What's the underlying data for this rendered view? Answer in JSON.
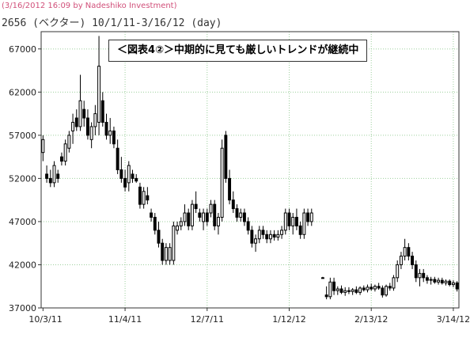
{
  "header": {
    "stamp": "(3/16/2012 16:09 by Nadeshiko Investment)",
    "subtitle": "2656 (ベクター) 10/1/11-3/16/12 (day)"
  },
  "chart_data": {
    "type": "candlestick",
    "title": "＜図表4②＞中期的に見ても厳しいトレンドが継続中",
    "xlabel": "",
    "ylabel": "",
    "ylim": [
      37000,
      69000
    ],
    "yticks": [
      37000,
      42000,
      47000,
      52000,
      57000,
      62000,
      67000
    ],
    "ytick_labels": [
      "37000",
      "42000",
      "47000",
      "52000",
      "57000",
      "62000",
      "67000"
    ],
    "xtick_labels": [
      {
        "label": "10/3/11",
        "index": 0
      },
      {
        "label": "11/4/11",
        "index": 22
      },
      {
        "label": "12/7/11",
        "index": 44
      },
      {
        "label": "1/12/12",
        "index": 66
      },
      {
        "label": "2/13/12",
        "index": 88
      },
      {
        "label": "3/14/12",
        "index": 110
      }
    ],
    "grid": true,
    "candles": [
      [
        55000,
        57000,
        54000,
        56500
      ],
      [
        52500,
        53500,
        51500,
        52000
      ],
      [
        52000,
        53000,
        51000,
        51500
      ],
      [
        51500,
        54000,
        51000,
        53500
      ],
      [
        52500,
        53000,
        51500,
        52000
      ],
      [
        54500,
        55000,
        53500,
        54000
      ],
      [
        54000,
        56500,
        53500,
        56000
      ],
      [
        55500,
        57500,
        55000,
        57000
      ],
      [
        57500,
        59500,
        56000,
        58500
      ],
      [
        59000,
        60000,
        57500,
        58000
      ],
      [
        58000,
        64000,
        57500,
        61000
      ],
      [
        60000,
        61000,
        58000,
        59000
      ],
      [
        59000,
        60000,
        56500,
        57000
      ],
      [
        56500,
        58500,
        55500,
        58000
      ],
      [
        58000,
        60500,
        57000,
        59500
      ],
      [
        58500,
        68500,
        57000,
        65000
      ],
      [
        61000,
        62000,
        58000,
        58500
      ],
      [
        58500,
        59500,
        56500,
        57000
      ],
      [
        57000,
        59000,
        56000,
        57500
      ],
      [
        57500,
        58000,
        55500,
        56000
      ],
      [
        55500,
        56500,
        52500,
        53000
      ],
      [
        53000,
        54500,
        51500,
        52000
      ],
      [
        52000,
        53000,
        50500,
        51000
      ],
      [
        51500,
        54000,
        50500,
        53500
      ],
      [
        52500,
        53000,
        51500,
        52000
      ],
      [
        52000,
        52500,
        51500,
        51700
      ],
      [
        51000,
        51500,
        48500,
        49000
      ],
      [
        49000,
        51000,
        48500,
        50500
      ],
      [
        50000,
        51000,
        49000,
        49500
      ],
      [
        48000,
        48500,
        47000,
        47500
      ],
      [
        47500,
        48000,
        45500,
        46000
      ],
      [
        46000,
        47000,
        44000,
        44500
      ],
      [
        44500,
        45000,
        42000,
        42500
      ],
      [
        42500,
        44500,
        42000,
        44000
      ],
      [
        42500,
        44500,
        42000,
        44000
      ],
      [
        42500,
        47000,
        42000,
        46500
      ],
      [
        46000,
        47000,
        45500,
        46500
      ],
      [
        46500,
        47500,
        46000,
        47000
      ],
      [
        47000,
        49000,
        46500,
        48000
      ],
      [
        48000,
        48500,
        46000,
        46500
      ],
      [
        46500,
        49500,
        46000,
        49000
      ],
      [
        49000,
        50500,
        48000,
        48500
      ],
      [
        48000,
        48500,
        47000,
        47500
      ],
      [
        47000,
        48500,
        46000,
        48000
      ],
      [
        48000,
        48500,
        46500,
        47000
      ],
      [
        48000,
        49500,
        47500,
        49000
      ],
      [
        49000,
        49500,
        46000,
        46500
      ],
      [
        46500,
        48000,
        45500,
        47500
      ],
      [
        47500,
        56500,
        47000,
        55500
      ],
      [
        57000,
        57500,
        51500,
        52000
      ],
      [
        52000,
        53000,
        49000,
        49500
      ],
      [
        49500,
        50500,
        48000,
        48500
      ],
      [
        48500,
        49000,
        47000,
        47500
      ],
      [
        47500,
        48500,
        47000,
        48000
      ],
      [
        48000,
        48500,
        46500,
        47000
      ],
      [
        47000,
        47500,
        45500,
        46000
      ],
      [
        46000,
        46500,
        44000,
        44500
      ],
      [
        44500,
        45500,
        43500,
        45000
      ],
      [
        45000,
        46500,
        44500,
        46000
      ],
      [
        46000,
        46500,
        45000,
        45500
      ],
      [
        45500,
        46000,
        44500,
        45000
      ],
      [
        45000,
        46000,
        44500,
        45500
      ],
      [
        45500,
        46000,
        44800,
        45200
      ],
      [
        45200,
        46000,
        44800,
        45500
      ],
      [
        45500,
        46500,
        45000,
        46000
      ],
      [
        46000,
        48500,
        45500,
        48000
      ],
      [
        48000,
        48500,
        46000,
        46500
      ],
      [
        46500,
        48000,
        45500,
        47500
      ],
      [
        47500,
        48500,
        46000,
        46500
      ],
      [
        46500,
        47000,
        45000,
        45500
      ],
      [
        45500,
        48500,
        45000,
        48000
      ],
      [
        48000,
        48500,
        46500,
        47000
      ],
      [
        47000,
        48500,
        46500,
        48000
      ],
      [
        null,
        null,
        null,
        null
      ],
      [
        null,
        null,
        null,
        null
      ],
      [
        40500,
        40600,
        40400,
        40500
      ],
      [
        38500,
        39500,
        38000,
        38300
      ],
      [
        38300,
        40500,
        38000,
        40000
      ],
      [
        40000,
        40500,
        38500,
        39000
      ],
      [
        39000,
        39500,
        38500,
        39200
      ],
      [
        39200,
        39600,
        38600,
        38800
      ],
      [
        38800,
        39400,
        38400,
        39000
      ],
      [
        39000,
        39400,
        38600,
        38900
      ],
      [
        38900,
        39300,
        38500,
        39100
      ],
      [
        39100,
        39500,
        38600,
        38800
      ],
      [
        38800,
        39500,
        38500,
        39300
      ],
      [
        39300,
        39600,
        38900,
        39100
      ],
      [
        39100,
        39700,
        38800,
        39400
      ],
      [
        39400,
        39800,
        39000,
        39200
      ],
      [
        39200,
        39700,
        38900,
        39500
      ],
      [
        39500,
        39900,
        39100,
        39300
      ],
      [
        39300,
        39600,
        38200,
        38500
      ],
      [
        38500,
        39700,
        38300,
        39500
      ],
      [
        39500,
        39900,
        39000,
        39300
      ],
      [
        39300,
        40800,
        39000,
        40500
      ],
      [
        40500,
        42500,
        40000,
        42000
      ],
      [
        42000,
        43500,
        41500,
        43000
      ],
      [
        43000,
        45000,
        42500,
        44000
      ],
      [
        44000,
        44500,
        42500,
        43000
      ],
      [
        43000,
        43500,
        41500,
        42000
      ],
      [
        42000,
        42500,
        40000,
        40500
      ],
      [
        40500,
        41500,
        39500,
        41000
      ],
      [
        41000,
        41500,
        40000,
        40500
      ],
      [
        40500,
        40800,
        39800,
        40200
      ],
      [
        40200,
        40600,
        39700,
        40300
      ],
      [
        40300,
        40600,
        39800,
        40000
      ],
      [
        40000,
        40500,
        39700,
        40200
      ],
      [
        40200,
        40500,
        39700,
        39900
      ],
      [
        39900,
        40300,
        39600,
        40100
      ],
      [
        40100,
        40300,
        39500,
        39700
      ],
      [
        39700,
        40200,
        39400,
        39900
      ],
      [
        39900,
        40100,
        38900,
        39200
      ]
    ]
  }
}
